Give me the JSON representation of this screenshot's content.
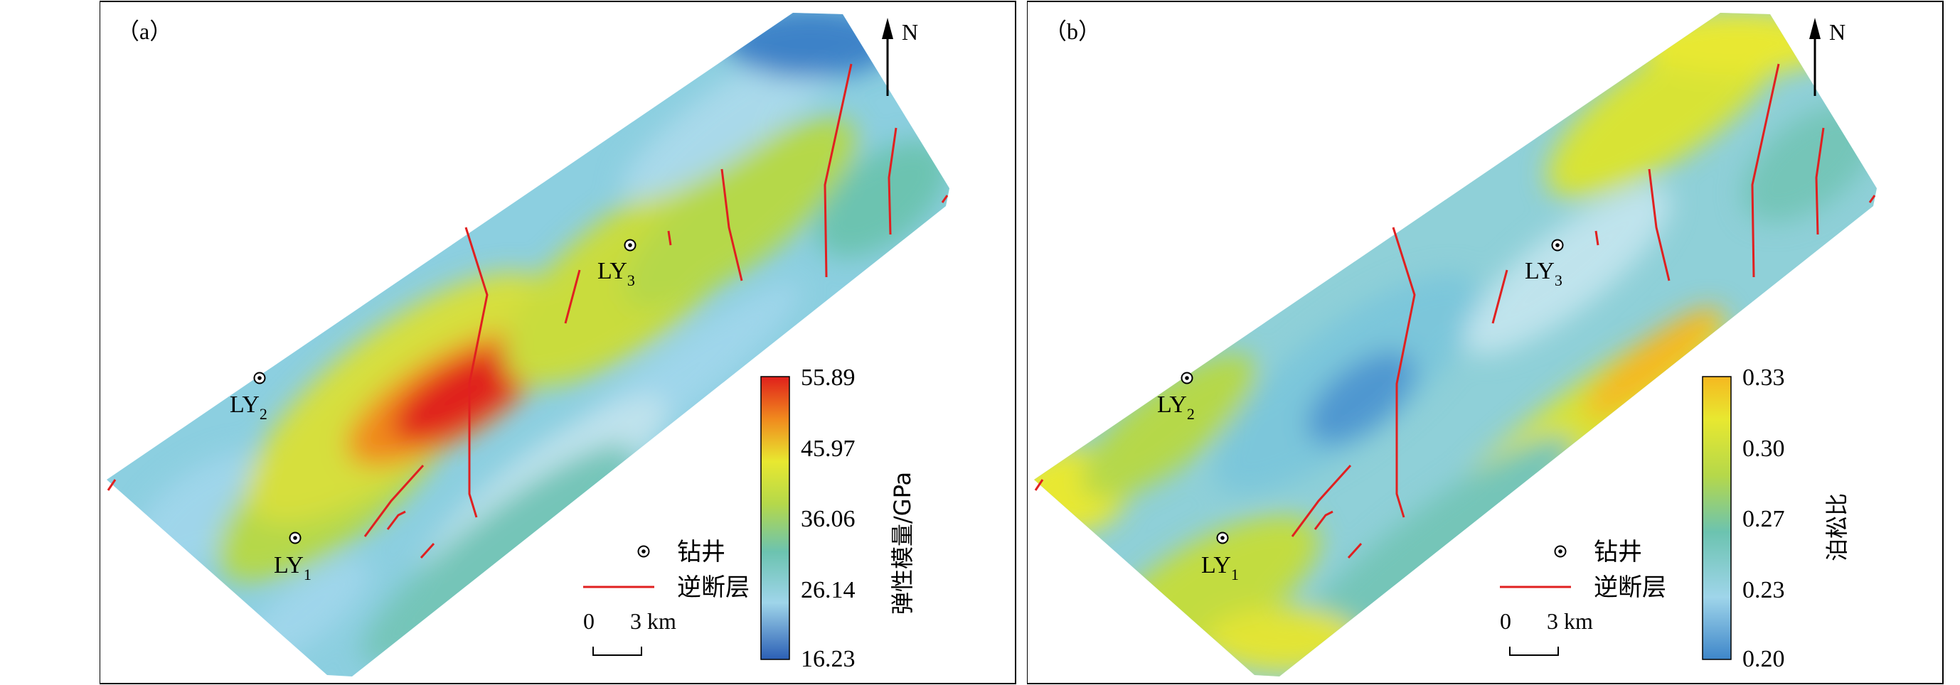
{
  "panels": [
    {
      "id": "a",
      "label": "（a）",
      "north": "N",
      "wells": [
        "LY1",
        "LY2",
        "LY3"
      ],
      "well_labels": {
        "LY1": {
          "base": "LY",
          "sub": "1"
        },
        "LY2": {
          "base": "LY",
          "sub": "2"
        },
        "LY3": {
          "base": "LY",
          "sub": "3"
        }
      },
      "legend": {
        "well": "钻井",
        "fault": "逆断层"
      },
      "scale": {
        "zero": "0",
        "end": "3 km"
      },
      "colorbar": {
        "title": "弹性模量/GPa",
        "ticks": [
          "55.89",
          "45.97",
          "36.06",
          "26.14",
          "16.23"
        ],
        "min": 16.23,
        "max": 55.89
      }
    },
    {
      "id": "b",
      "label": "（b）",
      "north": "N",
      "wells": [
        "LY1",
        "LY2",
        "LY3"
      ],
      "well_labels": {
        "LY1": {
          "base": "LY",
          "sub": "1"
        },
        "LY2": {
          "base": "LY",
          "sub": "2"
        },
        "LY3": {
          "base": "LY",
          "sub": "3"
        }
      },
      "legend": {
        "well": "钻井",
        "fault": "逆断层"
      },
      "scale": {
        "zero": "0",
        "end": "3 km"
      },
      "colorbar": {
        "title": "泊松比",
        "ticks": [
          "0.33",
          "0.30",
          "0.27",
          "0.23",
          "0.20"
        ],
        "min": 0.2,
        "max": 0.33
      }
    }
  ],
  "colors": {
    "fault": "#e02020",
    "ramp": [
      "#2b5fb5",
      "#9fd5ea",
      "#6cc3b0",
      "#b5d84a",
      "#e8e830",
      "#f08a1e",
      "#e0201c"
    ],
    "ramp_b": [
      "#3e86c9",
      "#9fd5ea",
      "#6cc3b0",
      "#b5d84a",
      "#e8e830",
      "#f5b820"
    ]
  }
}
